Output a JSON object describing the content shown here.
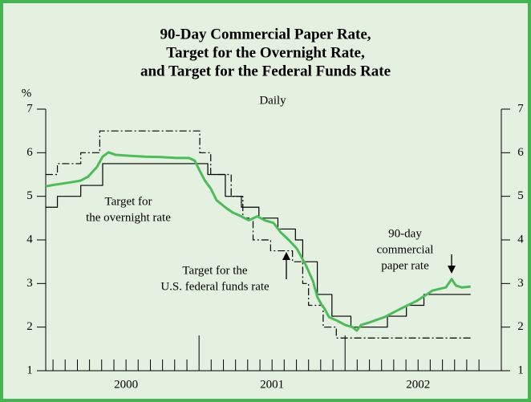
{
  "chart_data": {
    "type": "line",
    "title": [
      "90-Day Commercial Paper Rate,",
      "Target for the Overnight Rate,",
      "and Target for the Federal Funds Rate"
    ],
    "subtitle": "Daily",
    "y_unit": "%",
    "xlim": [
      1999.95,
      2003.07
    ],
    "ylim": [
      1,
      7
    ],
    "yticks": [
      1,
      2,
      3,
      4,
      5,
      6,
      7
    ],
    "x_labels": [
      {
        "value": 2000.5,
        "label": "2000"
      },
      {
        "value": 2001.5,
        "label": "2001"
      },
      {
        "value": 2002.5,
        "label": "2002"
      }
    ],
    "x_major_ticks": [
      2001,
      2002
    ],
    "x_minor_ticks": [
      2000,
      2000.083,
      2000.167,
      2000.25,
      2000.333,
      2000.417,
      2000.5,
      2000.583,
      2000.667,
      2000.75,
      2000.833,
      2000.917,
      2001.083,
      2001.167,
      2001.25,
      2001.333,
      2001.417,
      2001.5,
      2001.583,
      2001.667,
      2001.75,
      2001.833,
      2001.917,
      2002.083,
      2002.167,
      2002.25,
      2002.333,
      2002.417,
      2002.5,
      2002.583,
      2002.667,
      2002.75,
      2002.833,
      2002.917
    ],
    "series": [
      {
        "name": "90-day commercial paper rate",
        "color": "#4dbb5a",
        "style": "solid",
        "width": 3,
        "x": [
          1999.95,
          2000.02,
          2000.1,
          2000.19,
          2000.24,
          2000.3,
          2000.34,
          2000.38,
          2000.43,
          2000.52,
          2000.63,
          2000.74,
          2000.85,
          2000.93,
          2000.97,
          2001.01,
          2001.04,
          2001.08,
          2001.12,
          2001.19,
          2001.23,
          2001.29,
          2001.34,
          2001.4,
          2001.45,
          2001.51,
          2001.56,
          2001.62,
          2001.67,
          2001.73,
          2001.78,
          2001.81,
          2001.84,
          2001.86,
          2001.89,
          2001.95,
          2002.0,
          2002.05,
          2002.08,
          2002.11,
          2002.16,
          2002.27,
          2002.38,
          2002.49,
          2002.6,
          2002.69,
          2002.73,
          2002.76,
          2002.8,
          2002.86
        ],
        "values": [
          5.23,
          5.27,
          5.31,
          5.36,
          5.45,
          5.67,
          5.91,
          6.01,
          5.95,
          5.93,
          5.91,
          5.9,
          5.88,
          5.88,
          5.82,
          5.55,
          5.36,
          5.18,
          4.91,
          4.72,
          4.63,
          4.54,
          4.45,
          4.54,
          4.45,
          4.39,
          4.17,
          3.98,
          3.8,
          3.43,
          3.06,
          2.69,
          2.51,
          2.42,
          2.23,
          2.14,
          2.05,
          2.0,
          1.92,
          2.05,
          2.1,
          2.23,
          2.42,
          2.6,
          2.84,
          2.91,
          3.1,
          2.95,
          2.91,
          2.93
        ]
      },
      {
        "name": "Target for the overnight rate",
        "color": "#000000",
        "style": "solid",
        "width": 1.2,
        "x": [
          1999.95,
          2000.03,
          2000.03,
          2000.19,
          2000.19,
          2000.34,
          2000.34,
          2001.06,
          2001.06,
          2001.18,
          2001.18,
          2001.29,
          2001.29,
          2001.41,
          2001.41,
          2001.54,
          2001.54,
          2001.66,
          2001.66,
          2001.71,
          2001.71,
          2001.81,
          2001.81,
          2001.91,
          2001.91,
          2002.04,
          2002.04,
          2002.29,
          2002.29,
          2002.42,
          2002.42,
          2002.54,
          2002.54,
          2002.86
        ],
        "values": [
          4.75,
          4.75,
          5,
          5,
          5.25,
          5.25,
          5.75,
          5.75,
          5.5,
          5.5,
          5,
          5,
          4.75,
          4.75,
          4.5,
          4.5,
          4.25,
          4.25,
          4,
          4,
          3.5,
          3.5,
          2.75,
          2.75,
          2.25,
          2.25,
          2,
          2,
          2.25,
          2.25,
          2.5,
          2.5,
          2.75,
          2.75
        ]
      },
      {
        "name": "Target for the U.S. federal funds rate",
        "color": "#000000",
        "style": "dashdot",
        "width": 1.2,
        "x": [
          1999.95,
          2000.03,
          2000.03,
          2000.19,
          2000.19,
          2000.32,
          2000.32,
          2001.005,
          2001.005,
          2001.08,
          2001.08,
          2001.22,
          2001.22,
          2001.3,
          2001.3,
          2001.37,
          2001.37,
          2001.49,
          2001.49,
          2001.64,
          2001.64,
          2001.71,
          2001.71,
          2001.75,
          2001.75,
          2001.85,
          2001.85,
          2001.94,
          2001.94,
          2002.86
        ],
        "values": [
          5.5,
          5.5,
          5.75,
          5.75,
          6,
          6,
          6.5,
          6.5,
          6,
          6,
          5.5,
          5.5,
          5,
          5,
          4.5,
          4.5,
          4,
          4,
          3.75,
          3.75,
          3.5,
          3.5,
          3,
          3,
          2.5,
          2.5,
          2,
          2,
          1.75,
          1.75
        ]
      }
    ],
    "annotations": [
      {
        "lines": [
          "Target for",
          "the overnight rate"
        ]
      },
      {
        "lines": [
          "Target for the",
          "U.S. federal funds rate"
        ]
      },
      {
        "lines": [
          "90-day",
          "commercial",
          "paper rate"
        ]
      }
    ],
    "background": "#e4f1e1",
    "border_color": "#45b552"
  }
}
